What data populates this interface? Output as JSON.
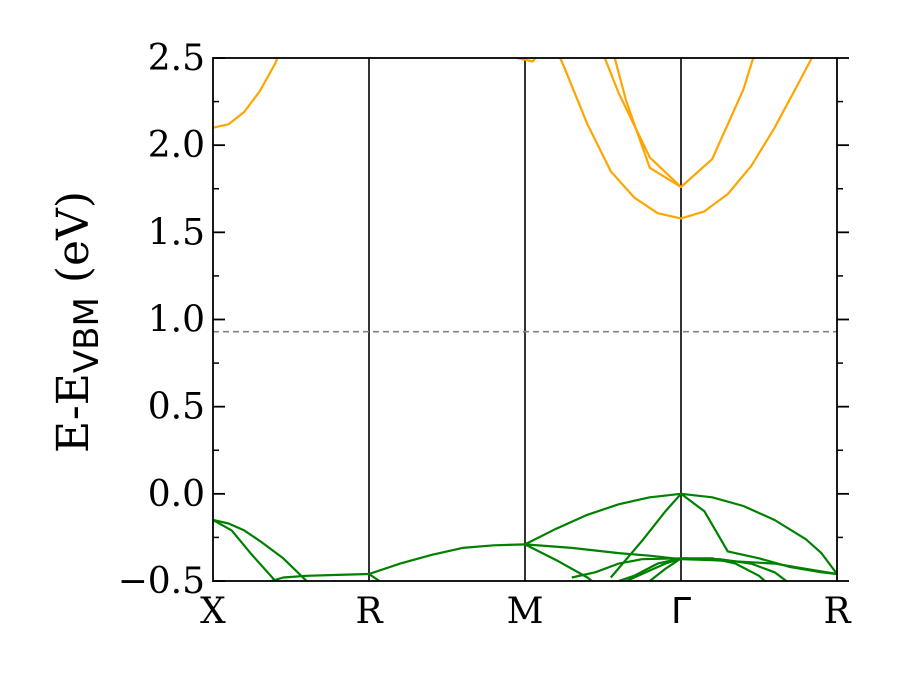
{
  "chart_data": {
    "type": "line",
    "title": "",
    "ylabel_main": "E-E",
    "ylabel_sub": "VBM",
    "ylabel_unit": "(eV)",
    "ylim": [
      -0.5,
      2.5
    ],
    "yticks": [
      "−0.5",
      "0.0",
      "0.5",
      "1.0",
      "1.5",
      "2.0",
      "2.5"
    ],
    "ytick_values": [
      -0.5,
      0.0,
      0.5,
      1.0,
      1.5,
      2.0,
      2.5
    ],
    "kpoints": [
      {
        "label": "X",
        "pos": 0
      },
      {
        "label": "R",
        "pos": 1
      },
      {
        "label": "M",
        "pos": 2
      },
      {
        "label": "Γ",
        "pos": 3
      },
      {
        "label": "R",
        "pos": 4
      }
    ],
    "fermi_level": 0.93,
    "colors": {
      "conduction": "#FFA500",
      "valence": "#008000",
      "fermi": "#808080",
      "kline": "#000000"
    },
    "conduction_bands": [
      [
        [
          0.0,
          2.1
        ],
        [
          0.1,
          2.12
        ],
        [
          0.2,
          2.19
        ],
        [
          0.3,
          2.31
        ],
        [
          0.4,
          2.47
        ],
        [
          0.5,
          2.72
        ]
      ],
      [
        [
          1.85,
          2.62
        ],
        [
          1.95,
          2.5
        ],
        [
          2.05,
          2.48
        ],
        [
          2.15,
          2.6
        ]
      ],
      [
        [
          2.1,
          2.75
        ],
        [
          2.25,
          2.45
        ],
        [
          2.4,
          2.12
        ],
        [
          2.55,
          1.85
        ],
        [
          2.7,
          1.7
        ],
        [
          2.85,
          1.61
        ],
        [
          3.0,
          1.58
        ],
        [
          3.15,
          1.62
        ],
        [
          3.3,
          1.72
        ],
        [
          3.45,
          1.88
        ],
        [
          3.6,
          2.1
        ],
        [
          3.75,
          2.35
        ],
        [
          3.85,
          2.52
        ],
        [
          4.0,
          2.8
        ]
      ],
      [
        [
          2.4,
          2.75
        ],
        [
          2.6,
          2.3
        ],
        [
          2.8,
          1.93
        ],
        [
          3.0,
          1.76
        ],
        [
          3.2,
          1.92
        ],
        [
          3.4,
          2.32
        ],
        [
          3.55,
          2.75
        ]
      ],
      [
        [
          2.5,
          2.75
        ],
        [
          2.65,
          2.25
        ],
        [
          2.8,
          1.87
        ],
        [
          3.0,
          1.76
        ]
      ]
    ],
    "valence_bands": [
      [
        [
          0.0,
          -0.15
        ],
        [
          0.1,
          -0.17
        ],
        [
          0.2,
          -0.21
        ],
        [
          0.3,
          -0.27
        ],
        [
          0.45,
          -0.37
        ],
        [
          0.6,
          -0.5
        ]
      ],
      [
        [
          0.0,
          -0.15
        ],
        [
          0.12,
          -0.21
        ],
        [
          0.25,
          -0.35
        ],
        [
          0.4,
          -0.5
        ]
      ],
      [
        [
          0.3,
          -0.52
        ],
        [
          0.45,
          -0.48
        ],
        [
          0.6,
          -0.47
        ],
        [
          0.8,
          -0.465
        ],
        [
          1.0,
          -0.46
        ]
      ],
      [
        [
          1.0,
          -0.46
        ],
        [
          1.2,
          -0.4
        ],
        [
          1.4,
          -0.35
        ],
        [
          1.6,
          -0.31
        ],
        [
          1.8,
          -0.295
        ],
        [
          2.0,
          -0.29
        ]
      ],
      [
        [
          1.0,
          -0.46
        ],
        [
          1.1,
          -0.52
        ],
        [
          1.2,
          -0.6
        ]
      ],
      [
        [
          2.0,
          -0.29
        ],
        [
          2.2,
          -0.2
        ],
        [
          2.4,
          -0.12
        ],
        [
          2.6,
          -0.06
        ],
        [
          2.8,
          -0.02
        ],
        [
          3.0,
          0.0
        ],
        [
          3.2,
          -0.02
        ],
        [
          3.4,
          -0.07
        ],
        [
          3.6,
          -0.15
        ],
        [
          3.8,
          -0.26
        ],
        [
          3.9,
          -0.34
        ],
        [
          4.0,
          -0.46
        ]
      ],
      [
        [
          2.0,
          -0.29
        ],
        [
          2.3,
          -0.31
        ],
        [
          2.6,
          -0.34
        ],
        [
          2.8,
          -0.355
        ],
        [
          3.0,
          -0.375
        ],
        [
          3.2,
          -0.38
        ],
        [
          3.4,
          -0.39
        ],
        [
          3.6,
          -0.4
        ],
        [
          3.8,
          -0.43
        ],
        [
          4.0,
          -0.46
        ]
      ],
      [
        [
          2.0,
          -0.29
        ],
        [
          2.2,
          -0.38
        ],
        [
          2.4,
          -0.48
        ],
        [
          2.5,
          -0.55
        ]
      ],
      [
        [
          2.3,
          -0.48
        ],
        [
          2.45,
          -0.45
        ],
        [
          2.6,
          -0.4
        ],
        [
          2.75,
          -0.375
        ],
        [
          3.0,
          -0.37
        ],
        [
          3.25,
          -0.375
        ],
        [
          3.45,
          -0.4
        ],
        [
          3.6,
          -0.45
        ],
        [
          3.75,
          -0.55
        ]
      ],
      [
        [
          2.55,
          -0.48
        ],
        [
          2.75,
          -0.27
        ],
        [
          2.9,
          -0.1
        ],
        [
          3.0,
          0.0
        ]
      ],
      [
        [
          2.6,
          -0.52
        ],
        [
          2.8,
          -0.44
        ],
        [
          2.9,
          -0.4
        ],
        [
          3.0,
          -0.37
        ]
      ],
      [
        [
          2.8,
          -0.5
        ],
        [
          2.9,
          -0.43
        ],
        [
          3.0,
          -0.37
        ]
      ],
      [
        [
          2.5,
          -0.53
        ],
        [
          2.7,
          -0.47
        ],
        [
          2.85,
          -0.4
        ],
        [
          3.0,
          -0.37
        ]
      ],
      [
        [
          3.0,
          0.0
        ],
        [
          3.15,
          -0.1
        ],
        [
          3.3,
          -0.33
        ],
        [
          3.5,
          -0.37
        ],
        [
          3.7,
          -0.42
        ],
        [
          3.9,
          -0.45
        ],
        [
          4.0,
          -0.46
        ]
      ],
      [
        [
          3.0,
          -0.37
        ],
        [
          3.2,
          -0.37
        ],
        [
          3.35,
          -0.4
        ],
        [
          3.5,
          -0.47
        ],
        [
          3.6,
          -0.55
        ]
      ]
    ]
  }
}
